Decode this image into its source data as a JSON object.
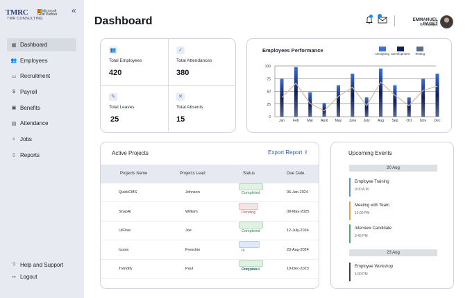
{
  "sidebar": {
    "logo": {
      "brand": "TMRC",
      "partner": "Microsoft Gold Partner",
      "sub": "TMR CONSULTING"
    },
    "collapse_icon": "double-chevron-left-icon",
    "items": [
      {
        "label": "Dashboard",
        "icon": "grid-icon",
        "glyph": "▦",
        "active": true
      },
      {
        "label": "Employees",
        "icon": "users-icon",
        "glyph": "👥",
        "active": false
      },
      {
        "label": "Recruitment",
        "icon": "briefcase-icon",
        "glyph": "▭",
        "active": false
      },
      {
        "label": "Payroll",
        "icon": "dollar-icon",
        "glyph": "$",
        "active": false
      },
      {
        "label": "Benefits",
        "icon": "gift-icon",
        "glyph": "▣",
        "active": false
      },
      {
        "label": "Attendance",
        "icon": "calendar-icon",
        "glyph": "▤",
        "active": false
      },
      {
        "label": "Jobs",
        "icon": "search-icon",
        "glyph": "⌕",
        "active": false
      },
      {
        "label": "Reports",
        "icon": "document-icon",
        "glyph": "▯",
        "active": false
      }
    ],
    "bottom": [
      {
        "label": "Help and Support",
        "icon": "help-icon",
        "glyph": "?"
      },
      {
        "label": "Logout",
        "icon": "logout-icon",
        "glyph": "↦"
      }
    ]
  },
  "header": {
    "title": "Dashboard",
    "user_name": "EMMANUEL PAGET",
    "user_role": "Hr Manager"
  },
  "stats": [
    {
      "label": "Total Employees",
      "value": "420",
      "icon": "users-icon"
    },
    {
      "label": "Total Attendances",
      "value": "380",
      "icon": "user-check-icon"
    },
    {
      "label": "Total Leaves",
      "value": "25",
      "icon": "user-leave-icon"
    },
    {
      "label": "Total Absents",
      "value": "15",
      "icon": "user-absent-icon"
    }
  ],
  "performance": {
    "title": "Employees Performance",
    "chart_data": {
      "type": "bar",
      "categories": [
        "Jan",
        "Feb",
        "Mar",
        "April",
        "May",
        "June",
        "July",
        "Aug",
        "Sep",
        "Oct",
        "Nov",
        "Dec"
      ],
      "series": [
        {
          "name": "Designing",
          "color": "#3b6fd6",
          "values": [
            75,
            98,
            48,
            27,
            62,
            85,
            38,
            95,
            62,
            38,
            75,
            85
          ]
        },
        {
          "name": "Development",
          "color": "#0f1f5c",
          "values": [
            75,
            98,
            48,
            27,
            62,
            85,
            38,
            95,
            62,
            38,
            75,
            85
          ]
        },
        {
          "name": "Testing",
          "color": "#5b6b8a",
          "values": [
            75,
            98,
            48,
            27,
            62,
            85,
            38,
            95,
            62,
            38,
            75,
            85
          ]
        }
      ],
      "line": {
        "color": "#d7b796",
        "values": [
          38,
          66,
          26,
          12,
          40,
          58,
          22,
          68,
          42,
          22,
          52,
          60
        ]
      },
      "ylim": [
        0,
        100
      ],
      "yticks": [
        0,
        25,
        50,
        75,
        100
      ],
      "grid": true,
      "legend": "top-right"
    }
  },
  "projects": {
    "title": "Active Projects",
    "export_label": "Export Report",
    "export_icon": "upload-icon",
    "headers": [
      "Projects Name",
      "Projects Lead",
      "Status",
      "Due Date"
    ],
    "rows": [
      {
        "name": "QuickCMS",
        "lead": "Johnson",
        "status": "Completed",
        "status_type": "completed",
        "due": "06-Jan-2024"
      },
      {
        "name": "SnapAi",
        "lead": "William",
        "status": "Pending",
        "status_type": "pending",
        "due": "08-May-2025"
      },
      {
        "name": "UiFlow",
        "lead": "Joe",
        "status": "Completed",
        "status_type": "completed",
        "due": "12-July-2024"
      },
      {
        "name": "Iconix",
        "lead": "Frenchie",
        "status": "In Progress",
        "status_type": "progress",
        "due": "23-Aug-2024"
      },
      {
        "name": "Trendify",
        "lead": "Paul",
        "status": "Completed",
        "status_type": "completed",
        "due": "19-Dec-2023"
      }
    ]
  },
  "events": {
    "title": "Upcoming Events",
    "groups": [
      {
        "date": "20 Aug",
        "items": [
          {
            "name": "Employee Training",
            "time": "9:00 A.M",
            "color": "#6a8fc7"
          },
          {
            "name": "Meeting with Team",
            "time": "12:00 PM",
            "color": "#d8a35a"
          },
          {
            "name": "Interview Candidate",
            "time": "3:45 PM",
            "color": "#5aa36a"
          }
        ]
      },
      {
        "date": "23 Aug",
        "items": [
          {
            "name": "Employee Workshop",
            "time": "1:00 PM",
            "color": "#3a3f4e"
          }
        ]
      }
    ]
  }
}
